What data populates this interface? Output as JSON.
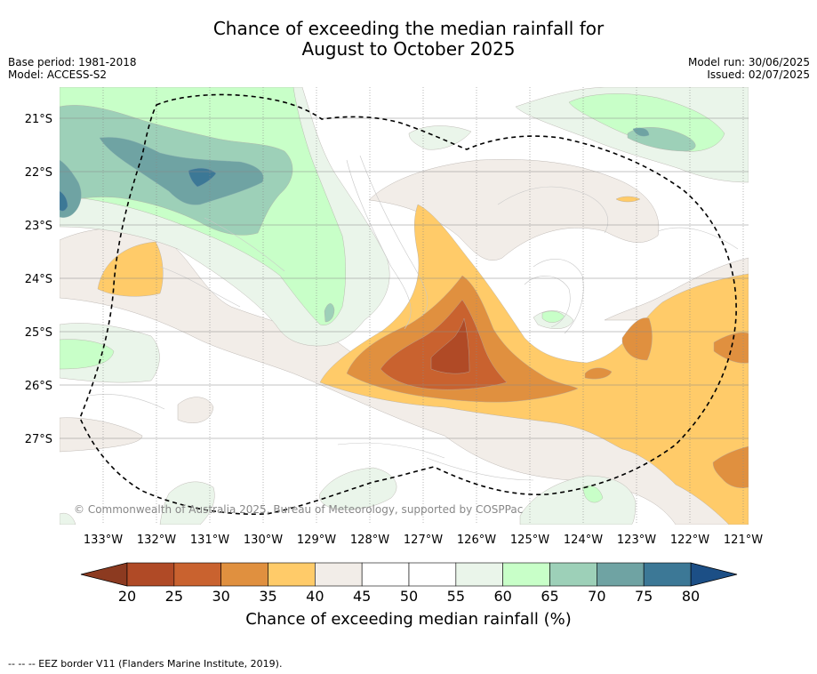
{
  "title_line1": "Chance of exceeding the median rainfall for",
  "title_line2": "August to October 2025",
  "base_period": "Base period: 1981-2018",
  "model": "Model: ACCESS-S2",
  "model_run": "Model run: 30/06/2025",
  "issued": "Issued: 02/07/2025",
  "copyright": "© Commonwealth of Australia 2025, Bureau of Meteorology, supported by COSPPac",
  "lat_labels": [
    "21°S",
    "22°S",
    "23°S",
    "24°S",
    "25°S",
    "26°S",
    "27°S"
  ],
  "lon_labels": [
    "133°W",
    "132°W",
    "131°W",
    "130°W",
    "129°W",
    "128°W",
    "127°W",
    "126°W",
    "125°W",
    "124°W",
    "123°W",
    "122°W",
    "121°W"
  ],
  "colorbar": {
    "title": "Chance of exceeding median rainfall (%)",
    "ticks": [
      "20",
      "25",
      "30",
      "35",
      "40",
      "45",
      "50",
      "55",
      "60",
      "65",
      "70",
      "75",
      "80"
    ],
    "colors": [
      "#b04a26",
      "#c9622f",
      "#e0903f",
      "#ffcb69",
      "#f2ede8",
      "#ffffff",
      "#ffffff",
      "#eaf5ea",
      "#c8ffc8",
      "#9dd0b8",
      "#6fa3a3",
      "#3c7896"
    ],
    "under_color": "#8c3a20",
    "over_color": "#1c4f86"
  },
  "footnote": "--  --  -- EEZ border V11 (Flanders Marine Institute, 2019)."
}
